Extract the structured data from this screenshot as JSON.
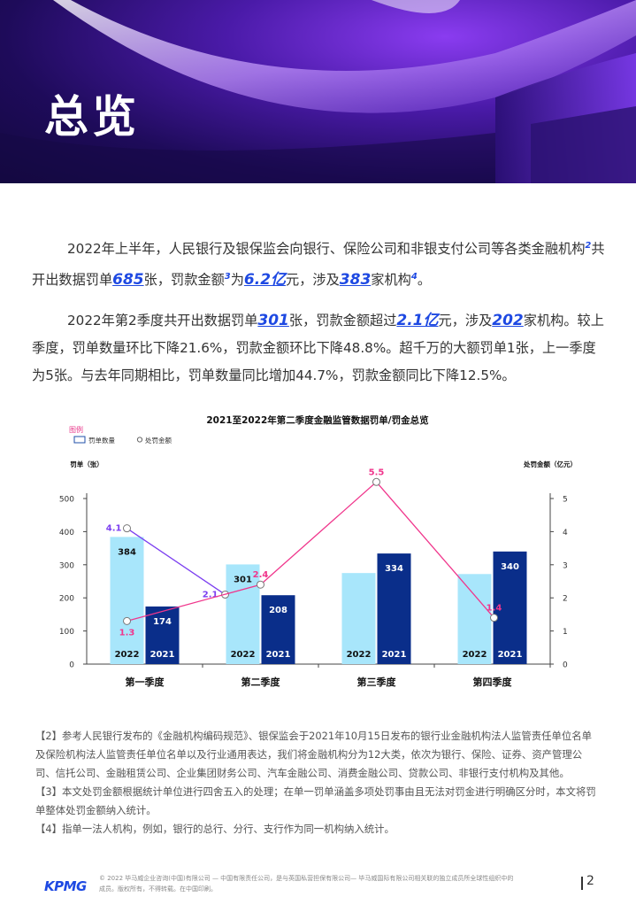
{
  "page": {
    "title": "总览",
    "page_number": "2"
  },
  "body": {
    "p1": {
      "t1": "2022年上半年，人民银行及银保监会向银行、保险公司和非银支付公司等各类金融机构",
      "fn1": "2",
      "t2": "共开出数据罚单",
      "v1": "685",
      "t3": "张，罚款金额",
      "fn2": "3",
      "t4": "为",
      "v2": "6.2亿",
      "t5": "元，涉及",
      "v3": "383",
      "t6": "家机构",
      "fn3": "4",
      "t7": "。"
    },
    "p2": {
      "t1": "2022年第2季度共开出数据罚单",
      "v1": "301",
      "t2": "张，罚款金额超过",
      "v2": "2.1亿",
      "t3": "元，涉及",
      "v3": "202",
      "t4": "家机构。较上季度，罚单数量环比下降21.6%，罚款金额环比下降48.8%。超千万的大额罚单1张，上一季度为5张。与去年同期相比，罚单数量同比增加44.7%，罚款金额同比下降12.5%。"
    }
  },
  "footnotes": [
    "【2】参考人民银行发布的《金融机构编码规范》、银保监会于2021年10月15日发布的银行业金融机构法人监管责任单位名单及保险机构法人监管责任单位名单以及行业通用表达，我们将金融机构分为12大类，依次为银行、保险、证券、资产管理公司、信托公司、金融租赁公司、企业集团财务公司、汽车金融公司、消费金融公司、贷款公司、非银行支付机构及其他。",
    "【3】本文处罚金额根据统计单位进行四舍五入的处理；在单一罚单涵盖多项处罚事由且无法对罚金进行明确区分时，本文将罚单整体处罚金额纳入统计。",
    "【4】指单一法人机构，例如，银行的总行、分行、支行作为同一机构纳入统计。"
  ],
  "footer": {
    "logo": "KPMG",
    "legal_line1": "© 2022 毕马威企业咨询(中国)有限公司 — 中国有限责任公司，是与英国私营担保有限公司— 毕马威国际有限公司相关联的独立成员所全球性组织中的",
    "legal_line2": "成员。版权所有，不得转载。在中国印刷。"
  },
  "chart_data": {
    "type": "bar",
    "title": "2021至2022年第二季度金融监管数据罚单/罚金总览",
    "legend_title": "图例",
    "legend": [
      "罚单数量",
      "处罚金额"
    ],
    "ylabel_left": "罚单（张）",
    "ylabel_right": "处罚金额（亿元）",
    "ylim_left": [
      0,
      500
    ],
    "ylim_right": [
      0,
      5
    ],
    "yticks_left": [
      "0",
      "100",
      "200",
      "300",
      "400",
      "500"
    ],
    "yticks_right": [
      "0",
      "1",
      "2",
      "3",
      "4",
      "5"
    ],
    "categories": [
      "第一季度",
      "第二季度",
      "第三季度",
      "第四季度"
    ],
    "series": [
      {
        "name": "2022",
        "kind": "bar",
        "color": "#a8e6fb",
        "values": [
          384,
          301,
          null,
          null
        ],
        "shown_values": [
          384,
          301,
          275,
          272
        ],
        "labels": [
          "384",
          "301",
          "",
          ""
        ]
      },
      {
        "name": "2021",
        "kind": "bar",
        "color": "#0a2e8a",
        "values": [
          174,
          208,
          334,
          340
        ],
        "labels": [
          "174",
          "208",
          "334",
          "340"
        ]
      }
    ],
    "line_series": [
      {
        "name": "2022",
        "color": "#7b3ef0",
        "values": [
          4.1,
          2.1,
          null,
          null
        ],
        "labels": [
          "4.1",
          "2.1",
          "",
          ""
        ]
      },
      {
        "name": "2021",
        "color": "#f0368c",
        "values": [
          1.3,
          2.4,
          5.5,
          1.4
        ],
        "labels": [
          "1.3",
          "2.4",
          "5.5",
          "1.4"
        ]
      }
    ],
    "grid": false,
    "legend_position": "top-left"
  }
}
